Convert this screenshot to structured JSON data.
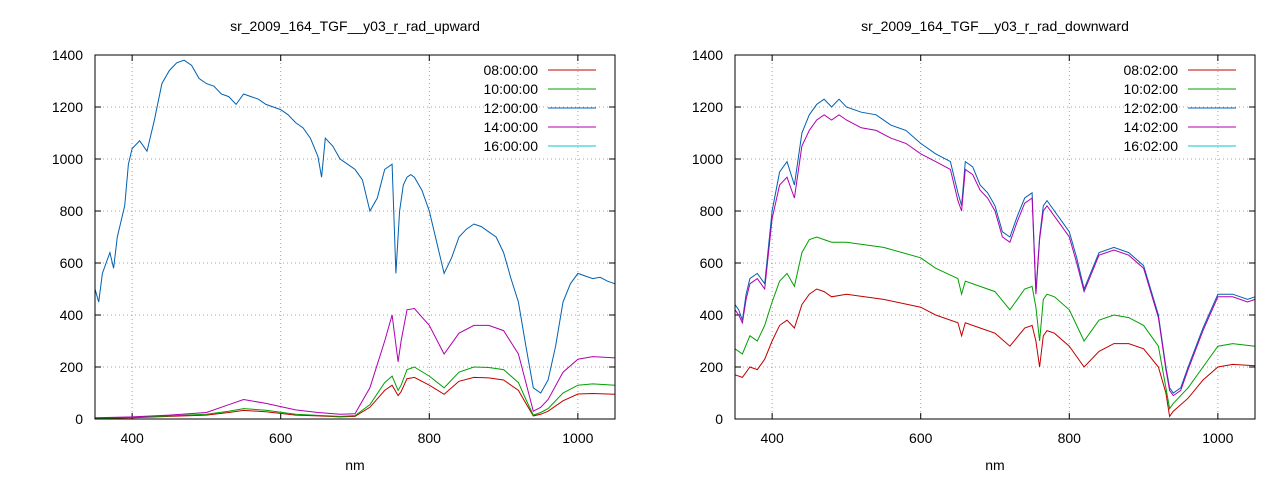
{
  "chart_data": [
    {
      "type": "line",
      "title": "sr_2009_164_TGF__y03_r_rad_upward",
      "xlabel": "nm",
      "ylabel": "",
      "xlim": [
        350,
        1050
      ],
      "ylim": [
        0,
        1400
      ],
      "xticks": [
        400,
        600,
        800,
        1000
      ],
      "yticks": [
        0,
        200,
        400,
        600,
        800,
        1000,
        1200,
        1400
      ],
      "grid": true,
      "legend_position": "top-right",
      "series": [
        {
          "name": "08:00:00",
          "color": "#c00000",
          "x": [
            350,
            400,
            450,
            500,
            530,
            550,
            580,
            620,
            650,
            680,
            700,
            720,
            740,
            750,
            758,
            762,
            770,
            780,
            800,
            820,
            840,
            860,
            880,
            900,
            920,
            930,
            940,
            950,
            960,
            980,
            1000,
            1020,
            1050
          ],
          "y": [
            2,
            5,
            10,
            15,
            25,
            33,
            28,
            15,
            12,
            8,
            10,
            45,
            110,
            130,
            90,
            105,
            155,
            160,
            130,
            95,
            145,
            160,
            158,
            150,
            110,
            60,
            12,
            18,
            30,
            70,
            96,
            98,
            95
          ]
        },
        {
          "name": "10:00:00",
          "color": "#00a000",
          "x": [
            350,
            400,
            450,
            500,
            530,
            550,
            580,
            620,
            650,
            680,
            700,
            720,
            740,
            750,
            758,
            762,
            770,
            780,
            800,
            820,
            840,
            860,
            880,
            900,
            920,
            930,
            940,
            950,
            960,
            980,
            1000,
            1020,
            1050
          ],
          "y": [
            3,
            6,
            12,
            18,
            30,
            40,
            34,
            18,
            14,
            10,
            13,
            55,
            140,
            165,
            110,
            130,
            190,
            200,
            165,
            120,
            180,
            200,
            198,
            190,
            140,
            75,
            15,
            25,
            40,
            100,
            130,
            135,
            130
          ]
        },
        {
          "name": "12:00:00",
          "color": "#0060b0",
          "x": [
            350,
            355,
            360,
            365,
            370,
            375,
            380,
            385,
            390,
            395,
            400,
            410,
            420,
            430,
            440,
            450,
            460,
            470,
            480,
            490,
            500,
            510,
            520,
            530,
            540,
            550,
            560,
            570,
            580,
            590,
            600,
            610,
            620,
            630,
            640,
            650,
            655,
            660,
            670,
            680,
            690,
            700,
            710,
            720,
            730,
            740,
            750,
            755,
            760,
            765,
            770,
            775,
            780,
            790,
            800,
            810,
            820,
            830,
            840,
            850,
            860,
            870,
            880,
            890,
            900,
            910,
            920,
            930,
            940,
            950,
            960,
            970,
            980,
            990,
            1000,
            1010,
            1020,
            1030,
            1040,
            1050
          ],
          "y": [
            500,
            450,
            560,
            600,
            640,
            580,
            700,
            760,
            820,
            980,
            1040,
            1070,
            1030,
            1150,
            1290,
            1340,
            1370,
            1380,
            1360,
            1310,
            1290,
            1280,
            1250,
            1240,
            1210,
            1250,
            1240,
            1230,
            1210,
            1200,
            1190,
            1170,
            1140,
            1120,
            1080,
            1010,
            930,
            1080,
            1050,
            1000,
            980,
            960,
            920,
            800,
            850,
            960,
            980,
            560,
            800,
            900,
            930,
            940,
            930,
            880,
            800,
            680,
            560,
            620,
            700,
            730,
            750,
            740,
            720,
            700,
            640,
            540,
            450,
            280,
            120,
            100,
            150,
            280,
            450,
            520,
            560,
            550,
            540,
            545,
            530,
            520
          ]
        },
        {
          "name": "14:00:00",
          "color": "#b000b0",
          "x": [
            350,
            400,
            450,
            500,
            530,
            550,
            580,
            620,
            650,
            680,
            700,
            720,
            740,
            750,
            758,
            762,
            770,
            780,
            800,
            820,
            840,
            860,
            880,
            900,
            920,
            930,
            940,
            950,
            960,
            980,
            1000,
            1020,
            1050
          ],
          "y": [
            5,
            8,
            15,
            25,
            55,
            75,
            60,
            35,
            25,
            18,
            20,
            120,
            300,
            400,
            220,
            300,
            420,
            425,
            360,
            250,
            330,
            360,
            360,
            340,
            250,
            140,
            30,
            45,
            75,
            180,
            230,
            240,
            235
          ]
        },
        {
          "name": "16:00:00",
          "color": "#00c8c8",
          "x": [
            350,
            400,
            450,
            500,
            1050
          ],
          "y": [
            0,
            0,
            0,
            0,
            0
          ]
        }
      ]
    },
    {
      "type": "line",
      "title": "sr_2009_164_TGF__y03_r_rad_downward",
      "xlabel": "nm",
      "ylabel": "",
      "xlim": [
        350,
        1050
      ],
      "ylim": [
        0,
        1400
      ],
      "xticks": [
        400,
        600,
        800,
        1000
      ],
      "yticks": [
        0,
        200,
        400,
        600,
        800,
        1000,
        1200,
        1400
      ],
      "grid": true,
      "legend_position": "top-right",
      "series": [
        {
          "name": "08:02:00",
          "color": "#c00000",
          "x": [
            350,
            360,
            370,
            380,
            390,
            400,
            410,
            420,
            430,
            440,
            450,
            460,
            470,
            480,
            500,
            550,
            600,
            620,
            650,
            655,
            660,
            680,
            700,
            720,
            740,
            750,
            755,
            760,
            765,
            770,
            780,
            800,
            820,
            840,
            860,
            880,
            900,
            920,
            930,
            935,
            940,
            960,
            980,
            1000,
            1020,
            1050
          ],
          "y": [
            170,
            160,
            200,
            190,
            230,
            300,
            360,
            380,
            350,
            440,
            480,
            500,
            490,
            470,
            480,
            460,
            430,
            400,
            370,
            320,
            370,
            350,
            330,
            280,
            350,
            360,
            300,
            200,
            320,
            340,
            330,
            280,
            200,
            260,
            290,
            290,
            270,
            200,
            100,
            10,
            30,
            80,
            150,
            200,
            210,
            205
          ]
        },
        {
          "name": "10:02:00",
          "color": "#00a000",
          "x": [
            350,
            360,
            370,
            380,
            390,
            400,
            410,
            420,
            430,
            440,
            450,
            460,
            470,
            480,
            500,
            550,
            600,
            620,
            650,
            655,
            660,
            680,
            700,
            720,
            740,
            750,
            755,
            760,
            765,
            770,
            780,
            800,
            820,
            840,
            860,
            880,
            900,
            920,
            930,
            935,
            940,
            960,
            980,
            1000,
            1020,
            1050
          ],
          "y": [
            270,
            250,
            320,
            300,
            360,
            450,
            530,
            560,
            510,
            640,
            690,
            700,
            690,
            680,
            680,
            660,
            620,
            580,
            540,
            480,
            530,
            510,
            490,
            420,
            500,
            510,
            430,
            300,
            460,
            480,
            470,
            420,
            300,
            380,
            400,
            390,
            360,
            280,
            120,
            40,
            60,
            120,
            200,
            280,
            290,
            280
          ]
        },
        {
          "name": "12:02:00",
          "color": "#0060b0",
          "x": [
            350,
            355,
            360,
            365,
            370,
            380,
            390,
            400,
            410,
            420,
            430,
            440,
            450,
            460,
            470,
            480,
            490,
            500,
            520,
            540,
            560,
            580,
            600,
            620,
            640,
            650,
            655,
            660,
            670,
            680,
            690,
            700,
            710,
            720,
            730,
            740,
            750,
            755,
            760,
            765,
            770,
            780,
            790,
            800,
            810,
            820,
            840,
            860,
            880,
            900,
            920,
            930,
            935,
            940,
            950,
            960,
            980,
            1000,
            1020,
            1040,
            1050
          ],
          "y": [
            440,
            420,
            380,
            480,
            540,
            560,
            520,
            800,
            950,
            990,
            900,
            1100,
            1170,
            1210,
            1230,
            1200,
            1230,
            1200,
            1180,
            1170,
            1130,
            1110,
            1060,
            1020,
            990,
            870,
            820,
            990,
            970,
            900,
            870,
            820,
            720,
            700,
            780,
            850,
            870,
            490,
            700,
            820,
            840,
            800,
            760,
            720,
            620,
            500,
            640,
            660,
            640,
            590,
            400,
            200,
            120,
            100,
            120,
            200,
            350,
            480,
            480,
            460,
            470
          ]
        },
        {
          "name": "14:02:00",
          "color": "#b000b0",
          "x": [
            350,
            355,
            360,
            365,
            370,
            380,
            390,
            400,
            410,
            420,
            430,
            440,
            450,
            460,
            470,
            480,
            490,
            500,
            520,
            540,
            560,
            580,
            600,
            620,
            640,
            650,
            655,
            660,
            670,
            680,
            690,
            700,
            710,
            720,
            730,
            740,
            750,
            755,
            760,
            765,
            770,
            780,
            790,
            800,
            810,
            820,
            840,
            860,
            880,
            900,
            920,
            930,
            935,
            940,
            950,
            960,
            980,
            1000,
            1020,
            1040,
            1050
          ],
          "y": [
            420,
            400,
            370,
            460,
            520,
            540,
            500,
            770,
            900,
            930,
            850,
            1050,
            1110,
            1150,
            1170,
            1150,
            1170,
            1150,
            1120,
            1110,
            1080,
            1060,
            1020,
            990,
            960,
            840,
            800,
            960,
            940,
            880,
            850,
            800,
            700,
            680,
            760,
            830,
            850,
            480,
            690,
            800,
            820,
            780,
            740,
            700,
            600,
            490,
            630,
            650,
            630,
            580,
            390,
            190,
            110,
            90,
            110,
            190,
            340,
            470,
            470,
            450,
            460
          ]
        },
        {
          "name": "16:02:00",
          "color": "#00c8c8",
          "x": [
            350,
            400,
            450,
            500,
            1050
          ],
          "y": [
            0,
            0,
            0,
            0,
            0
          ]
        }
      ]
    }
  ]
}
